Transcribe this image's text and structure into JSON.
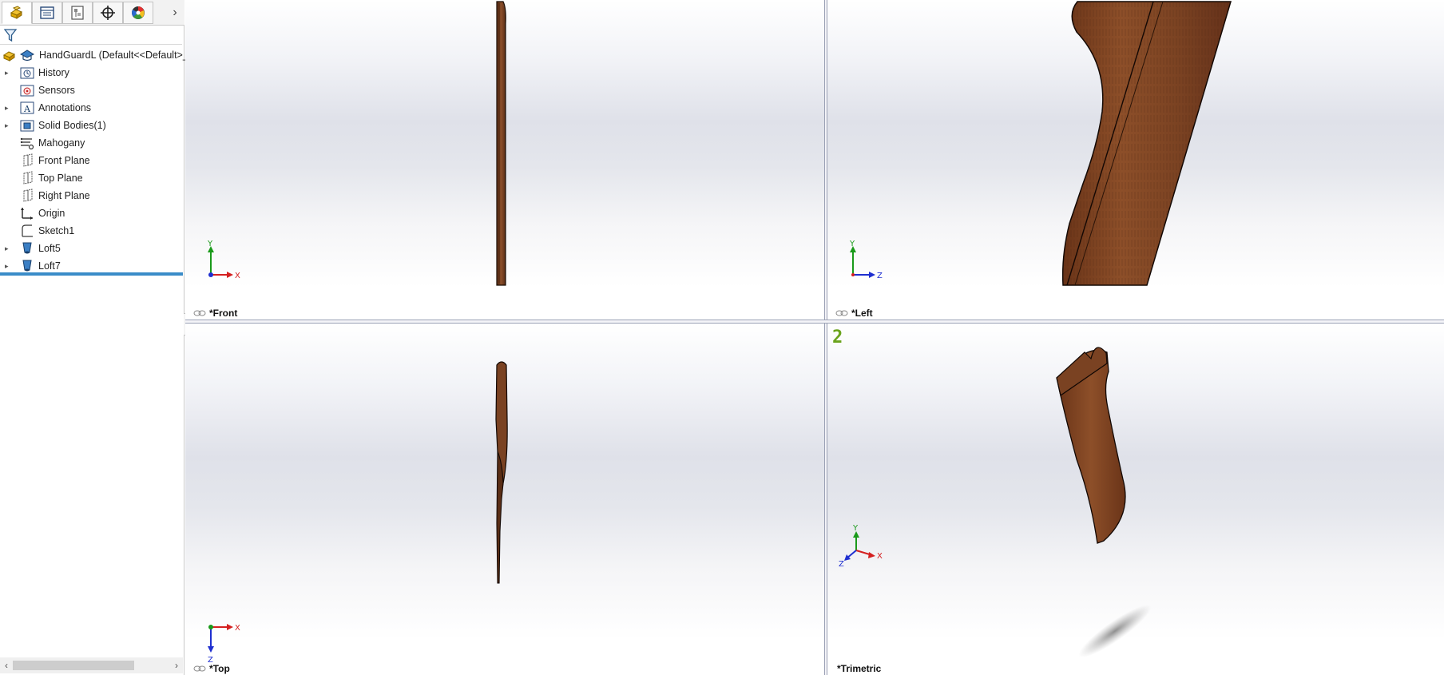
{
  "feature_manager": {
    "tabs": [
      {
        "name": "FeatureManager design tree",
        "icon": "part-tree-icon"
      },
      {
        "name": "PropertyManager",
        "icon": "property-manager-icon"
      },
      {
        "name": "ConfigurationManager",
        "icon": "configuration-manager-icon"
      },
      {
        "name": "DimXpertManager",
        "icon": "dimxpert-icon"
      },
      {
        "name": "DisplayManager",
        "icon": "display-manager-icon"
      }
    ],
    "more_tabs_glyph": "›",
    "root_label": "HandGuardL  (Default<<Default>_",
    "items": [
      {
        "label": "History",
        "icon": "history-folder-icon",
        "expandable": true
      },
      {
        "label": "Sensors",
        "icon": "sensors-icon",
        "expandable": false
      },
      {
        "label": "Annotations",
        "icon": "annotations-icon",
        "expandable": true
      },
      {
        "label": "Solid Bodies(1)",
        "icon": "solid-bodies-icon",
        "expandable": true
      },
      {
        "label": "Mahogany",
        "icon": "material-icon",
        "expandable": false
      },
      {
        "label": "Front Plane",
        "icon": "plane-icon",
        "expandable": false
      },
      {
        "label": "Top Plane",
        "icon": "plane-icon",
        "expandable": false
      },
      {
        "label": "Right Plane",
        "icon": "plane-icon",
        "expandable": false
      },
      {
        "label": "Origin",
        "icon": "origin-icon",
        "expandable": false
      },
      {
        "label": "Sketch1",
        "icon": "sketch-icon",
        "expandable": false
      },
      {
        "label": "Loft5",
        "icon": "loft-icon",
        "expandable": true
      },
      {
        "label": "Loft7",
        "icon": "loft-icon",
        "expandable": true
      }
    ],
    "expander_glyph": "▸",
    "scroll_left": "‹",
    "scroll_right": "›"
  },
  "viewports": {
    "front": {
      "label": "*Front",
      "axes": [
        "Y",
        "X"
      ]
    },
    "left": {
      "label": "*Left",
      "axes": [
        "Y",
        "Z"
      ]
    },
    "top": {
      "label": "*Top",
      "axes": [
        "X",
        "Z"
      ]
    },
    "trimetric": {
      "label": "*Trimetric",
      "axes": [
        "Y",
        "X",
        "Z"
      ],
      "viewport_number": "2"
    }
  },
  "colors": {
    "wood": "#7a4424",
    "wood_dark": "#4a2512",
    "axis_x": "#d42020",
    "axis_y": "#1a9a1a",
    "axis_z": "#1f2fd0",
    "rollback": "#3a8cc8",
    "viewport_number": "#6aa31c"
  }
}
